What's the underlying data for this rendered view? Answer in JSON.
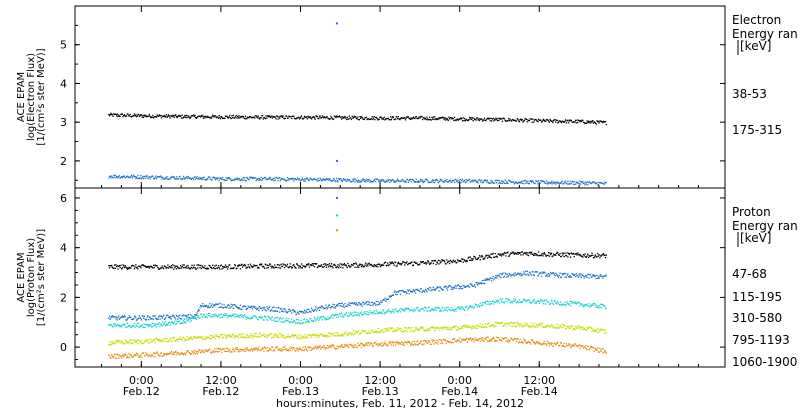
{
  "chart_data": [
    {
      "type": "scatter",
      "ylabel": [
        "ACE EPAM",
        "log(Electron Flux)",
        "[1/(cm²s ster MeV)]"
      ],
      "ylim": [
        1.3,
        6.0
      ],
      "yticks": [
        2,
        3,
        4,
        5
      ],
      "legend_title": [
        "Electron",
        "Energy ran",
        "[keV]"
      ],
      "series": [
        {
          "name": "38-53",
          "color": "#000000",
          "values": [
            [
              -5,
              3.2
            ],
            [
              0,
              3.18
            ],
            [
              6,
              3.16
            ],
            [
              12,
              3.15
            ],
            [
              18,
              3.14
            ],
            [
              24,
              3.14
            ],
            [
              30,
              3.13
            ],
            [
              36,
              3.12
            ],
            [
              42,
              3.12
            ],
            [
              48,
              3.1
            ],
            [
              54,
              3.08
            ],
            [
              60,
              3.05
            ],
            [
              66,
              3.03
            ],
            [
              70,
              3.0
            ]
          ]
        },
        {
          "name": "175-315",
          "color": "#1e73c8",
          "values": [
            [
              -5,
              1.62
            ],
            [
              0,
              1.6
            ],
            [
              6,
              1.58
            ],
            [
              12,
              1.55
            ],
            [
              18,
              1.55
            ],
            [
              24,
              1.54
            ],
            [
              30,
              1.52
            ],
            [
              36,
              1.5
            ],
            [
              42,
              1.5
            ],
            [
              48,
              1.5
            ],
            [
              54,
              1.48
            ],
            [
              60,
              1.46
            ],
            [
              66,
              1.45
            ],
            [
              70,
              1.43
            ]
          ]
        }
      ],
      "spikes": [
        [
          29.5,
          5.55,
          "#1e73c8"
        ],
        [
          29.5,
          2.0,
          "#1e73c8"
        ]
      ]
    },
    {
      "type": "scatter",
      "ylabel": [
        "ACE EPAM",
        "log(Proton Flux)",
        "[1/(cm²s ster MeV)]"
      ],
      "ylim": [
        -0.8,
        6.4
      ],
      "yticks": [
        0,
        2,
        4,
        6
      ],
      "legend_title": [
        "Proton",
        "Energy ran",
        "[keV]"
      ],
      "series": [
        {
          "name": "47-68",
          "color": "#000000",
          "values": [
            [
              -5,
              3.25
            ],
            [
              0,
              3.25
            ],
            [
              6,
              3.25
            ],
            [
              12,
              3.25
            ],
            [
              18,
              3.28
            ],
            [
              24,
              3.3
            ],
            [
              30,
              3.3
            ],
            [
              36,
              3.35
            ],
            [
              42,
              3.4
            ],
            [
              48,
              3.5
            ],
            [
              54,
              3.75
            ],
            [
              58,
              3.8
            ],
            [
              62,
              3.75
            ],
            [
              66,
              3.72
            ],
            [
              70,
              3.7
            ]
          ]
        },
        {
          "name": "115-195",
          "color": "#1e73c8",
          "values": [
            [
              -5,
              1.2
            ],
            [
              0,
              1.2
            ],
            [
              8,
              1.25
            ],
            [
              9,
              1.7
            ],
            [
              12,
              1.7
            ],
            [
              16,
              1.6
            ],
            [
              20,
              1.55
            ],
            [
              24,
              1.4
            ],
            [
              27,
              1.6
            ],
            [
              30,
              1.7
            ],
            [
              36,
              1.8
            ],
            [
              38,
              2.2
            ],
            [
              42,
              2.3
            ],
            [
              46,
              2.4
            ],
            [
              50,
              2.5
            ],
            [
              54,
              2.9
            ],
            [
              58,
              3.0
            ],
            [
              64,
              2.9
            ],
            [
              70,
              2.85
            ]
          ]
        },
        {
          "name": "310-580",
          "color": "#1ed2d2",
          "values": [
            [
              -5,
              0.9
            ],
            [
              0,
              0.9
            ],
            [
              6,
              1.0
            ],
            [
              9,
              1.3
            ],
            [
              12,
              1.3
            ],
            [
              18,
              1.2
            ],
            [
              24,
              1.05
            ],
            [
              30,
              1.3
            ],
            [
              36,
              1.45
            ],
            [
              42,
              1.55
            ],
            [
              48,
              1.55
            ],
            [
              54,
              1.9
            ],
            [
              60,
              1.85
            ],
            [
              66,
              1.75
            ],
            [
              70,
              1.65
            ]
          ]
        },
        {
          "name": "795-1193",
          "color": "#c8dc00",
          "values": [
            [
              -5,
              0.2
            ],
            [
              0,
              0.25
            ],
            [
              6,
              0.35
            ],
            [
              12,
              0.45
            ],
            [
              18,
              0.5
            ],
            [
              24,
              0.45
            ],
            [
              30,
              0.55
            ],
            [
              36,
              0.7
            ],
            [
              42,
              0.75
            ],
            [
              48,
              0.8
            ],
            [
              54,
              0.95
            ],
            [
              60,
              0.9
            ],
            [
              66,
              0.8
            ],
            [
              70,
              0.65
            ]
          ]
        },
        {
          "name": "1060-1900",
          "color": "#e68c14",
          "values": [
            [
              -5,
              -0.35
            ],
            [
              0,
              -0.3
            ],
            [
              6,
              -0.2
            ],
            [
              12,
              -0.1
            ],
            [
              18,
              -0.05
            ],
            [
              24,
              -0.05
            ],
            [
              30,
              0.05
            ],
            [
              36,
              0.15
            ],
            [
              42,
              0.2
            ],
            [
              48,
              0.3
            ],
            [
              54,
              0.35
            ],
            [
              60,
              0.2
            ],
            [
              66,
              0.05
            ],
            [
              70,
              -0.15
            ]
          ]
        }
      ],
      "spikes": [
        [
          29.5,
          6.0,
          "#1e73c8"
        ],
        [
          29.5,
          5.3,
          "#1ed2d2"
        ],
        [
          29.5,
          4.7,
          "#e68c14"
        ]
      ]
    }
  ],
  "x_axis": {
    "xlim": [
      -10,
      88
    ],
    "label": "hours:minutes, Feb. 11, 2012 - Feb. 14, 2012",
    "ticks": [
      {
        "hour": 0,
        "time": "0:00",
        "date": "Feb.12"
      },
      {
        "hour": 12,
        "time": "12:00",
        "date": "Feb.12"
      },
      {
        "hour": 24,
        "time": "0:00",
        "date": "Feb.13"
      },
      {
        "hour": 36,
        "time": "12:00",
        "date": "Feb.13"
      },
      {
        "hour": 48,
        "time": "0:00",
        "date": "Feb.14"
      },
      {
        "hour": 60,
        "time": "12:00",
        "date": "Feb.14"
      }
    ]
  }
}
